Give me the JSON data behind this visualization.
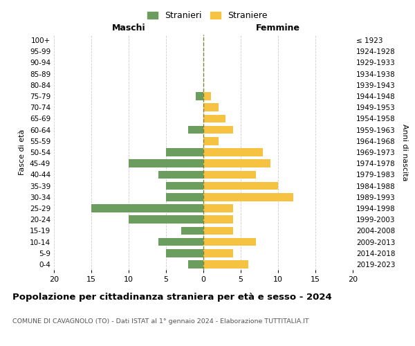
{
  "age_groups": [
    "100+",
    "95-99",
    "90-94",
    "85-89",
    "80-84",
    "75-79",
    "70-74",
    "65-69",
    "60-64",
    "55-59",
    "50-54",
    "45-49",
    "40-44",
    "35-39",
    "30-34",
    "25-29",
    "20-24",
    "15-19",
    "10-14",
    "5-9",
    "0-4"
  ],
  "birth_years": [
    "≤ 1923",
    "1924-1928",
    "1929-1933",
    "1934-1938",
    "1939-1943",
    "1944-1948",
    "1949-1953",
    "1954-1958",
    "1959-1963",
    "1964-1968",
    "1969-1973",
    "1974-1978",
    "1979-1983",
    "1984-1988",
    "1989-1993",
    "1994-1998",
    "1999-2003",
    "2004-2008",
    "2009-2013",
    "2014-2018",
    "2019-2023"
  ],
  "maschi": [
    0,
    0,
    0,
    0,
    0,
    1,
    0,
    0,
    2,
    0,
    5,
    10,
    6,
    5,
    5,
    15,
    10,
    3,
    6,
    5,
    2
  ],
  "femmine": [
    0,
    0,
    0,
    0,
    0,
    1,
    2,
    3,
    4,
    2,
    8,
    9,
    7,
    10,
    12,
    4,
    4,
    4,
    7,
    4,
    6
  ],
  "color_maschi": "#6b9e5e",
  "color_femmine": "#f5c242",
  "title": "Popolazione per cittadinanza straniera per età e sesso - 2024",
  "subtitle": "COMUNE DI CAVAGNOLO (TO) - Dati ISTAT al 1° gennaio 2024 - Elaborazione TUTTITALIA.IT",
  "xlabel_left": "Maschi",
  "xlabel_right": "Femmine",
  "ylabel_left": "Fasce di età",
  "ylabel_right": "Anni di nascita",
  "xlim": 20,
  "legend_stranieri": "Stranieri",
  "legend_straniere": "Straniere",
  "bg_color": "#ffffff",
  "grid_color": "#cccccc",
  "dashed_color": "#808040"
}
